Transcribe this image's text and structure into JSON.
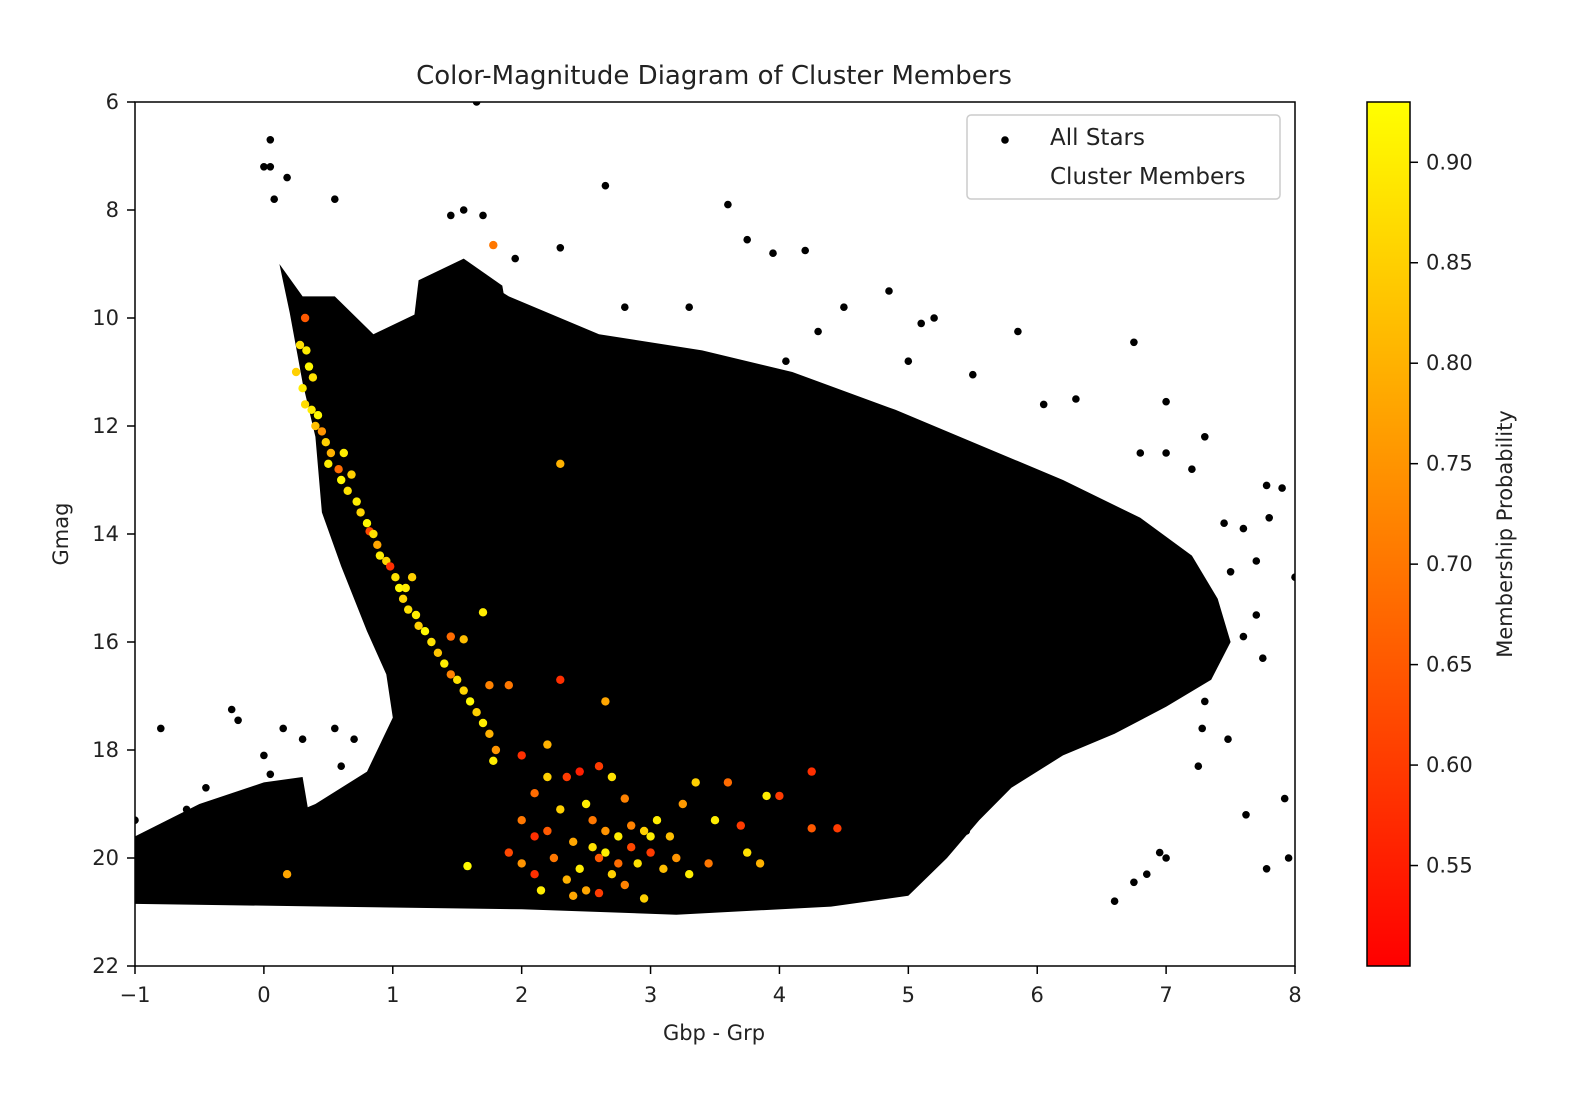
{
  "chart_data": {
    "type": "scatter",
    "title": "Color-Magnitude Diagram of Cluster Members",
    "xlabel": "Gbp - Grp",
    "ylabel": "Gmag",
    "xlim": [
      -1,
      8
    ],
    "ylim": [
      22,
      6
    ],
    "y_inverted": true,
    "x_ticks": [
      -1,
      0,
      1,
      2,
      3,
      4,
      5,
      6,
      7,
      8
    ],
    "x_tick_labels": [
      "−1",
      "0",
      "1",
      "2",
      "3",
      "4",
      "5",
      "6",
      "7",
      "8"
    ],
    "y_ticks": [
      6,
      8,
      10,
      12,
      14,
      16,
      18,
      20,
      22
    ],
    "y_tick_labels": [
      "6",
      "8",
      "10",
      "12",
      "14",
      "16",
      "18",
      "20",
      "22"
    ],
    "grid": false,
    "legend": {
      "position": "top-right",
      "entries": [
        "All Stars",
        "Cluster Members"
      ]
    },
    "colorbar": {
      "label": "Membership Probability",
      "colormap": "autumn",
      "range": [
        0.5,
        0.93
      ],
      "ticks": [
        0.55,
        0.6,
        0.65,
        0.7,
        0.75,
        0.8,
        0.85,
        0.9
      ],
      "tick_labels": [
        "0.55",
        "0.60",
        "0.65",
        "0.70",
        "0.75",
        "0.80",
        "0.85",
        "0.90"
      ],
      "low_color": "#ff0000",
      "high_color": "#ffff00"
    },
    "series": [
      {
        "name": "All Stars",
        "color": "#000000",
        "points": [
          [
            0.05,
            6.7
          ],
          [
            0.0,
            7.2
          ],
          [
            0.05,
            7.2
          ],
          [
            0.18,
            7.4
          ],
          [
            0.08,
            7.8
          ],
          [
            0.55,
            7.8
          ],
          [
            1.55,
            8.0
          ],
          [
            1.45,
            8.1
          ],
          [
            1.7,
            8.1
          ],
          [
            3.6,
            7.9
          ],
          [
            2.65,
            7.55
          ],
          [
            1.65,
            6.0
          ],
          [
            3.75,
            8.55
          ],
          [
            3.95,
            8.8
          ],
          [
            4.2,
            8.75
          ],
          [
            2.3,
            8.7
          ],
          [
            1.95,
            8.9
          ],
          [
            4.85,
            9.5
          ],
          [
            5.2,
            10.0
          ],
          [
            5.85,
            10.25
          ],
          [
            6.75,
            10.45
          ],
          [
            4.3,
            10.25
          ],
          [
            4.5,
            9.8
          ],
          [
            3.3,
            9.8
          ],
          [
            2.8,
            9.8
          ],
          [
            5.1,
            10.1
          ],
          [
            5.0,
            10.8
          ],
          [
            4.05,
            10.8
          ],
          [
            5.5,
            11.05
          ],
          [
            6.05,
            11.6
          ],
          [
            6.3,
            11.5
          ],
          [
            7.3,
            12.2
          ],
          [
            7.0,
            11.55
          ],
          [
            7.0,
            12.5
          ],
          [
            6.8,
            12.5
          ],
          [
            7.2,
            12.8
          ],
          [
            7.78,
            13.1
          ],
          [
            7.8,
            13.7
          ],
          [
            7.9,
            13.15
          ],
          [
            8.0,
            14.8
          ],
          [
            7.7,
            14.5
          ],
          [
            7.5,
            14.7
          ],
          [
            7.45,
            13.8
          ],
          [
            7.6,
            13.9
          ],
          [
            7.7,
            15.5
          ],
          [
            7.75,
            16.3
          ],
          [
            7.6,
            15.9
          ],
          [
            7.45,
            15.9
          ],
          [
            7.3,
            16.5
          ],
          [
            7.3,
            17.1
          ],
          [
            7.28,
            17.6
          ],
          [
            7.48,
            17.8
          ],
          [
            7.25,
            18.3
          ],
          [
            7.62,
            19.2
          ],
          [
            7.92,
            18.9
          ],
          [
            7.78,
            20.2
          ],
          [
            7.95,
            20.0
          ],
          [
            7.0,
            20.0
          ],
          [
            6.85,
            20.3
          ],
          [
            6.6,
            20.8
          ],
          [
            6.75,
            20.45
          ],
          [
            6.95,
            19.9
          ],
          [
            5.45,
            19.5
          ],
          [
            -0.8,
            17.6
          ],
          [
            -0.25,
            17.25
          ],
          [
            -0.2,
            17.45
          ],
          [
            0.15,
            17.6
          ],
          [
            0.3,
            17.8
          ],
          [
            0.55,
            17.6
          ],
          [
            0.0,
            18.1
          ],
          [
            0.05,
            18.45
          ],
          [
            -0.45,
            18.7
          ],
          [
            -0.6,
            19.1
          ],
          [
            -0.7,
            19.6
          ],
          [
            -1.0,
            19.3
          ],
          [
            -0.3,
            19.8
          ],
          [
            0.6,
            18.3
          ],
          [
            0.7,
            17.8
          ]
        ],
        "dense_regions": [
          {
            "note": "main sequence & field band",
            "x_range": [
              -1,
              7.2
            ],
            "y_range": [
              9.5,
              21
            ]
          }
        ]
      },
      {
        "name": "Cluster Members",
        "color_by": "Membership Probability",
        "points": [
          [
            0.32,
            10.0,
            0.65
          ],
          [
            0.28,
            10.5,
            0.88
          ],
          [
            0.33,
            10.6,
            0.9
          ],
          [
            0.25,
            11.0,
            0.85
          ],
          [
            0.35,
            10.9,
            0.92
          ],
          [
            0.38,
            11.1,
            0.88
          ],
          [
            0.3,
            11.3,
            0.9
          ],
          [
            0.32,
            11.6,
            0.87
          ],
          [
            0.37,
            11.7,
            0.9
          ],
          [
            0.42,
            11.8,
            0.92
          ],
          [
            0.4,
            12.0,
            0.82
          ],
          [
            0.45,
            12.1,
            0.75
          ],
          [
            0.48,
            12.3,
            0.85
          ],
          [
            0.52,
            12.5,
            0.8
          ],
          [
            0.5,
            12.7,
            0.9
          ],
          [
            0.58,
            12.8,
            0.68
          ],
          [
            0.6,
            13.0,
            0.92
          ],
          [
            0.65,
            13.2,
            0.88
          ],
          [
            0.62,
            12.5,
            0.9
          ],
          [
            0.68,
            12.9,
            0.85
          ],
          [
            0.72,
            13.4,
            0.9
          ],
          [
            0.75,
            13.6,
            0.86
          ],
          [
            0.8,
            13.8,
            0.92
          ],
          [
            0.82,
            13.95,
            0.62
          ],
          [
            0.85,
            14.0,
            0.88
          ],
          [
            0.88,
            14.2,
            0.78
          ],
          [
            0.9,
            14.4,
            0.9
          ],
          [
            0.95,
            14.5,
            0.86
          ],
          [
            0.98,
            14.6,
            0.58
          ],
          [
            1.02,
            14.8,
            0.88
          ],
          [
            1.05,
            15.0,
            0.92
          ],
          [
            1.08,
            15.2,
            0.86
          ],
          [
            1.1,
            15.0,
            0.9
          ],
          [
            1.12,
            15.4,
            0.88
          ],
          [
            1.15,
            14.8,
            0.85
          ],
          [
            1.18,
            15.5,
            0.9
          ],
          [
            1.2,
            15.7,
            0.85
          ],
          [
            1.25,
            15.8,
            0.92
          ],
          [
            1.3,
            16.0,
            0.88
          ],
          [
            1.35,
            16.2,
            0.83
          ],
          [
            1.4,
            16.4,
            0.9
          ],
          [
            1.45,
            16.6,
            0.72
          ],
          [
            1.5,
            16.7,
            0.88
          ],
          [
            1.55,
            16.9,
            0.86
          ],
          [
            1.6,
            17.1,
            0.92
          ],
          [
            1.65,
            17.3,
            0.85
          ],
          [
            1.7,
            17.5,
            0.9
          ],
          [
            1.75,
            17.7,
            0.8
          ],
          [
            1.8,
            18.0,
            0.75
          ],
          [
            1.78,
            18.2,
            0.9
          ],
          [
            1.45,
            15.9,
            0.68
          ],
          [
            1.55,
            15.95,
            0.82
          ],
          [
            1.7,
            15.45,
            0.9
          ],
          [
            1.75,
            16.8,
            0.72
          ],
          [
            1.9,
            16.8,
            0.7
          ],
          [
            1.78,
            8.65,
            0.7
          ],
          [
            2.3,
            12.7,
            0.8
          ],
          [
            2.3,
            16.7,
            0.58
          ],
          [
            2.65,
            17.1,
            0.78
          ],
          [
            0.18,
            20.3,
            0.78
          ],
          [
            1.58,
            20.15,
            0.92
          ],
          [
            2.0,
            18.1,
            0.58
          ],
          [
            2.2,
            17.9,
            0.8
          ],
          [
            2.2,
            18.5,
            0.85
          ],
          [
            2.1,
            18.8,
            0.68
          ],
          [
            2.35,
            18.5,
            0.6
          ],
          [
            2.45,
            18.4,
            0.55
          ],
          [
            2.6,
            18.3,
            0.6
          ],
          [
            2.7,
            18.5,
            0.88
          ],
          [
            2.8,
            18.9,
            0.72
          ],
          [
            2.5,
            19.0,
            0.9
          ],
          [
            2.3,
            19.1,
            0.85
          ],
          [
            2.0,
            19.3,
            0.7
          ],
          [
            2.1,
            19.6,
            0.58
          ],
          [
            2.2,
            19.5,
            0.65
          ],
          [
            2.4,
            19.7,
            0.78
          ],
          [
            2.55,
            19.8,
            0.88
          ],
          [
            2.65,
            19.5,
            0.75
          ],
          [
            2.75,
            19.6,
            0.9
          ],
          [
            2.85,
            19.4,
            0.72
          ],
          [
            2.95,
            19.5,
            0.85
          ],
          [
            3.05,
            19.3,
            0.9
          ],
          [
            3.15,
            19.6,
            0.82
          ],
          [
            3.25,
            19.0,
            0.76
          ],
          [
            3.35,
            18.6,
            0.85
          ],
          [
            3.5,
            19.3,
            0.9
          ],
          [
            3.6,
            18.6,
            0.68
          ],
          [
            3.7,
            19.4,
            0.6
          ],
          [
            3.75,
            19.9,
            0.88
          ],
          [
            3.85,
            20.1,
            0.8
          ],
          [
            3.9,
            18.85,
            0.9
          ],
          [
            4.0,
            18.85,
            0.6
          ],
          [
            4.25,
            18.4,
            0.58
          ],
          [
            4.25,
            19.45,
            0.65
          ],
          [
            4.45,
            19.45,
            0.6
          ],
          [
            1.9,
            19.9,
            0.62
          ],
          [
            2.0,
            20.1,
            0.75
          ],
          [
            2.1,
            20.3,
            0.58
          ],
          [
            2.25,
            20.0,
            0.7
          ],
          [
            2.35,
            20.4,
            0.8
          ],
          [
            2.45,
            20.2,
            0.9
          ],
          [
            2.5,
            20.6,
            0.78
          ],
          [
            2.6,
            20.0,
            0.65
          ],
          [
            2.7,
            20.3,
            0.85
          ],
          [
            2.8,
            20.5,
            0.72
          ],
          [
            2.9,
            20.1,
            0.88
          ],
          [
            3.0,
            19.9,
            0.6
          ],
          [
            3.1,
            20.2,
            0.82
          ],
          [
            3.2,
            20.0,
            0.75
          ],
          [
            3.3,
            20.3,
            0.9
          ],
          [
            3.45,
            20.1,
            0.7
          ],
          [
            2.95,
            20.75,
            0.85
          ],
          [
            2.6,
            20.65,
            0.6
          ],
          [
            2.4,
            20.7,
            0.78
          ],
          [
            2.15,
            20.6,
            0.9
          ],
          [
            2.55,
            19.3,
            0.7
          ],
          [
            2.65,
            19.9,
            0.9
          ],
          [
            2.85,
            19.8,
            0.62
          ],
          [
            3.0,
            19.6,
            0.9
          ],
          [
            2.75,
            20.1,
            0.68
          ]
        ]
      }
    ]
  }
}
